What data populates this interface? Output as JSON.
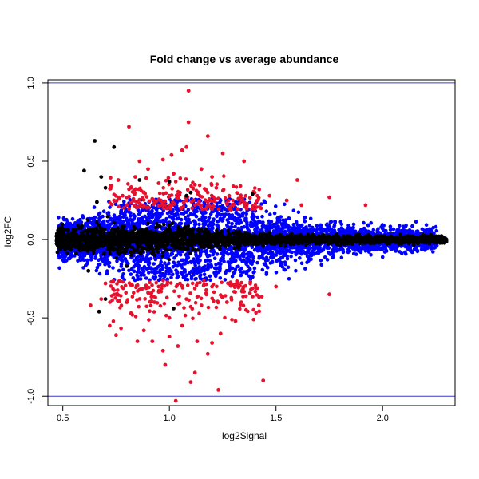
{
  "chart_data": {
    "type": "scatter",
    "title": "Fold change vs average abundance",
    "xlabel": "log2Signal",
    "ylabel": "log2FC",
    "xlim": [
      0.43,
      2.34
    ],
    "ylim": [
      -1.06,
      1.02
    ],
    "xticks": [
      0.5,
      1.0,
      1.5,
      2.0
    ],
    "xtick_labels": [
      "0.5",
      "1.0",
      "1.5",
      "2.0"
    ],
    "yticks": [
      -1.0,
      -0.5,
      0.0,
      0.5,
      1.0
    ],
    "ytick_labels": [
      "-1.0",
      "-0.5",
      "0.0",
      "0.5",
      "1.0"
    ],
    "grid": false,
    "reference_lines": [
      1.0,
      -1.0
    ],
    "colors": {
      "black": "#000000",
      "blue": "#0000ff",
      "red": "#e8112d",
      "refline": "#3a3acd"
    },
    "series": [
      {
        "color": "red",
        "points": [
          [
            1.09,
            0.95
          ],
          [
            1.09,
            0.75
          ],
          [
            0.81,
            0.72
          ],
          [
            1.18,
            0.66
          ],
          [
            1.08,
            0.59
          ],
          [
            1.06,
            0.57
          ],
          [
            0.97,
            0.51
          ],
          [
            0.86,
            0.5
          ],
          [
            1.01,
            0.54
          ],
          [
            1.25,
            0.55
          ],
          [
            1.35,
            0.5
          ],
          [
            0.9,
            0.45
          ],
          [
            1.15,
            0.45
          ],
          [
            0.76,
            0.38
          ],
          [
            1.6,
            0.38
          ],
          [
            0.82,
            0.33
          ],
          [
            0.95,
            0.36
          ],
          [
            1.3,
            0.34
          ],
          [
            1.2,
            0.4
          ],
          [
            0.88,
            0.3
          ],
          [
            1.4,
            0.3
          ],
          [
            1.47,
            0.28
          ],
          [
            1.75,
            0.27
          ],
          [
            1.55,
            0.25
          ],
          [
            1.92,
            0.22
          ],
          [
            0.74,
            0.25
          ],
          [
            0.8,
            0.22
          ],
          [
            1.05,
            0.3
          ],
          [
            1.12,
            0.35
          ],
          [
            1.0,
            0.28
          ],
          [
            0.92,
            0.26
          ],
          [
            1.28,
            0.28
          ],
          [
            1.35,
            0.24
          ],
          [
            1.18,
            0.24
          ],
          [
            0.98,
            0.22
          ],
          [
            1.08,
            0.25
          ],
          [
            1.22,
            0.33
          ],
          [
            0.84,
            0.4
          ],
          [
            1.43,
            0.2
          ],
          [
            1.62,
            0.22
          ],
          [
            1.02,
            0.42
          ],
          [
            0.78,
            0.28
          ],
          [
            0.7,
            -0.28
          ],
          [
            0.75,
            -0.35
          ],
          [
            0.86,
            -0.32
          ],
          [
            0.95,
            -0.3
          ],
          [
            1.05,
            -0.28
          ],
          [
            1.2,
            -0.3
          ],
          [
            1.3,
            -0.29
          ],
          [
            1.38,
            -0.27
          ],
          [
            1.5,
            -0.3
          ],
          [
            1.75,
            -0.35
          ],
          [
            1.44,
            -0.9
          ],
          [
            1.23,
            -0.96
          ],
          [
            1.12,
            -0.85
          ],
          [
            1.1,
            -0.91
          ],
          [
            1.03,
            -1.03
          ],
          [
            0.98,
            -0.8
          ],
          [
            0.63,
            -0.42
          ],
          [
            0.72,
            -0.55
          ],
          [
            0.75,
            -0.61
          ],
          [
            0.82,
            -0.47
          ],
          [
            0.88,
            -0.58
          ],
          [
            0.92,
            -0.65
          ],
          [
            0.97,
            -0.71
          ],
          [
            1.0,
            -0.5
          ],
          [
            1.06,
            -0.55
          ],
          [
            1.13,
            -0.65
          ],
          [
            1.18,
            -0.73
          ],
          [
            1.24,
            -0.6
          ],
          [
            1.31,
            -0.52
          ],
          [
            1.36,
            -0.45
          ],
          [
            1.27,
            -0.4
          ],
          [
            1.15,
            -0.42
          ],
          [
            1.08,
            -0.38
          ],
          [
            0.93,
            -0.4
          ],
          [
            0.8,
            -0.4
          ],
          [
            0.68,
            -0.38
          ],
          [
            1.0,
            -0.62
          ],
          [
            1.04,
            -0.68
          ],
          [
            1.2,
            -0.66
          ],
          [
            1.42,
            -0.42
          ],
          [
            0.85,
            -0.65
          ],
          [
            0.9,
            -0.34
          ]
        ]
      },
      {
        "color": "black",
        "points": [
          [
            0.65,
            0.63
          ],
          [
            0.74,
            0.59
          ],
          [
            0.6,
            0.44
          ],
          [
            0.68,
            0.4
          ],
          [
            0.86,
            0.38
          ],
          [
            1.0,
            0.37
          ],
          [
            1.1,
            0.3
          ],
          [
            1.39,
            0.29
          ],
          [
            1.08,
            0.28
          ],
          [
            0.7,
            0.33
          ],
          [
            0.66,
            0.24
          ],
          [
            0.62,
            -0.2
          ],
          [
            0.8,
            -0.17
          ],
          [
            1.02,
            -0.44
          ],
          [
            0.67,
            -0.46
          ],
          [
            0.7,
            -0.38
          ]
        ]
      }
    ]
  }
}
